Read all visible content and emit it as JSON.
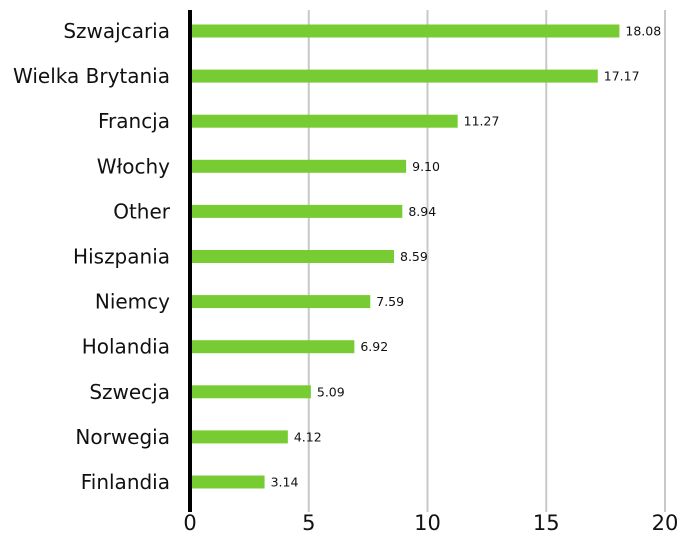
{
  "chart_data": {
    "type": "bar",
    "orientation": "horizontal",
    "title": "",
    "xlabel": "",
    "ylabel": "",
    "categories": [
      "Szwajcaria",
      "Wielka Brytania",
      "Francja",
      "Włochy",
      "Other",
      "Hiszpania",
      "Niemcy",
      "Holandia",
      "Szwecja",
      "Norwegia",
      "Finlandia"
    ],
    "values": [
      18.08,
      17.17,
      11.27,
      9.1,
      8.94,
      8.59,
      7.59,
      6.92,
      5.09,
      4.12,
      3.14
    ],
    "value_labels": [
      "18.08",
      "17.17",
      "11.27",
      "9.10",
      "8.94",
      "8.59",
      "7.59",
      "6.92",
      "5.09",
      "4.12",
      "3.14"
    ],
    "xlim": [
      0,
      20
    ],
    "xticks": [
      0,
      5,
      10,
      15,
      20
    ],
    "xtick_labels": [
      "0",
      "5",
      "10",
      "15",
      "20"
    ],
    "grid": "vertical",
    "legend": "none",
    "colors": {
      "bar": "#77cc33",
      "grid": "#c8c8c8",
      "axis": "#000000",
      "text": "#111111"
    }
  }
}
